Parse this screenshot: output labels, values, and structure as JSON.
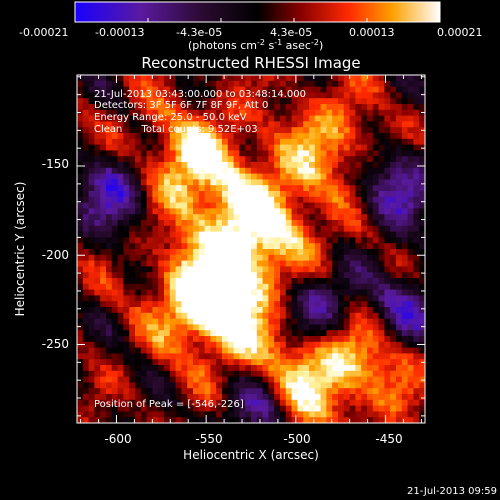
{
  "colorbar": {
    "ticks": [
      "-0.00021",
      "-0.00013",
      "-4.3e-05",
      "4.3e-05",
      "0.00013",
      "0.00021"
    ],
    "units_main": "(photons cm",
    "units_sup1": "-2",
    "units_mid": " s",
    "units_sup2": "-1",
    "units_mid2": " asec",
    "units_sup3": "-2",
    "units_end": ")"
  },
  "chart_data": {
    "type": "heatmap",
    "title": "Reconstructed RHESSI Image",
    "xlabel": "Heliocentric X (arcsec)",
    "ylabel": "Heliocentric Y (arcsec)",
    "xlim": [
      -622,
      -428
    ],
    "ylim": [
      -294,
      -99
    ],
    "xticks": [
      -600,
      -550,
      -500,
      -450
    ],
    "yticks": [
      -150,
      -200,
      -250
    ],
    "color_range": [
      -0.00021,
      0.00021
    ],
    "colormap": "blue-purple-black-red-orange-yellow-white",
    "peak_position": [
      -546,
      -226
    ],
    "bright_regions": [
      {
        "x": -560,
        "y": -150,
        "level": "bright"
      },
      {
        "x": -520,
        "y": -185,
        "level": "bright"
      },
      {
        "x": -545,
        "y": -225,
        "level": "peak"
      },
      {
        "x": -500,
        "y": -270,
        "level": "bright"
      },
      {
        "x": -480,
        "y": -140,
        "level": "moderate"
      },
      {
        "x": -458,
        "y": -255,
        "level": "moderate"
      }
    ],
    "dark_regions": [
      {
        "x": -600,
        "y": -165,
        "level": "negative"
      },
      {
        "x": -490,
        "y": -230,
        "level": "negative"
      },
      {
        "x": -440,
        "y": -230,
        "level": "negative"
      },
      {
        "x": -520,
        "y": -285,
        "level": "negative"
      },
      {
        "x": -445,
        "y": -160,
        "level": "negative"
      }
    ],
    "annotations": [
      "21-Jul-2013 03:43:00.000 to 03:48:14.000",
      "Detectors: 3F 5F 6F 7F 8F 9F, Att 0",
      "Energy Range: 25.0 - 50.0 keV",
      "Clean      Total counts: 9.52E+03",
      "Position of Peak = [-546,-226]"
    ]
  },
  "footer": {
    "timestamp": "21-Jul-2013 09:59"
  }
}
